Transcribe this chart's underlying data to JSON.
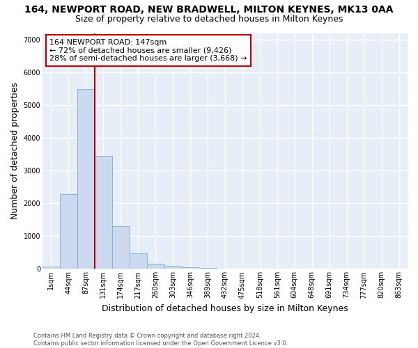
{
  "title": "164, NEWPORT ROAD, NEW BRADWELL, MILTON KEYNES, MK13 0AA",
  "subtitle": "Size of property relative to detached houses in Milton Keynes",
  "xlabel": "Distribution of detached houses by size in Milton Keynes",
  "ylabel": "Number of detached properties",
  "bar_color": "#ccd9ee",
  "bar_edge_color": "#7aaed6",
  "categories": [
    "1sqm",
    "44sqm",
    "87sqm",
    "131sqm",
    "174sqm",
    "217sqm",
    "260sqm",
    "303sqm",
    "346sqm",
    "389sqm",
    "432sqm",
    "475sqm",
    "518sqm",
    "561sqm",
    "604sqm",
    "648sqm",
    "691sqm",
    "734sqm",
    "777sqm",
    "820sqm",
    "863sqm"
  ],
  "values": [
    80,
    2280,
    5480,
    3440,
    1310,
    480,
    165,
    95,
    55,
    35,
    0,
    0,
    0,
    0,
    0,
    0,
    0,
    0,
    0,
    0,
    0
  ],
  "ylim": [
    0,
    7200
  ],
  "yticks": [
    0,
    1000,
    2000,
    3000,
    4000,
    5000,
    6000,
    7000
  ],
  "vline_color": "#c00000",
  "annotation_text": "164 NEWPORT ROAD: 147sqm\n← 72% of detached houses are smaller (9,426)\n28% of semi-detached houses are larger (3,668) →",
  "annotation_box_color": "#ffffff",
  "annotation_box_edge": "#c00000",
  "footer_line1": "Contains HM Land Registry data © Crown copyright and database right 2024.",
  "footer_line2": "Contains public sector information licensed under the Open Government Licence v3.0.",
  "plot_bg_color": "#e8eef7",
  "fig_bg_color": "#ffffff",
  "grid_color": "#ffffff",
  "title_fontsize": 10,
  "subtitle_fontsize": 9,
  "axis_label_fontsize": 9,
  "tick_fontsize": 7,
  "bar_width": 1.0
}
